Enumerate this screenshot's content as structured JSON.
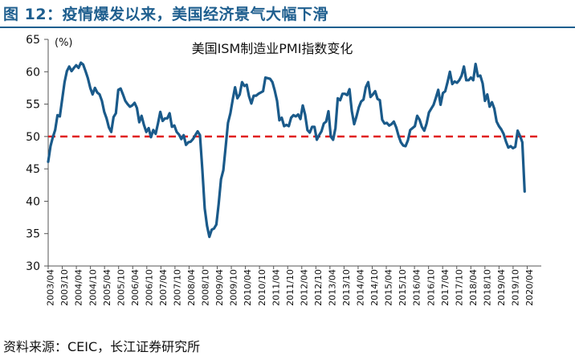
{
  "figure": {
    "title": "图 12：疫情爆发以来，美国经济景气大幅下滑",
    "source": "资料来源：CEIC，长江证券研究所"
  },
  "colors": {
    "line": "#1a5a8a",
    "threshold": "#e02020",
    "title": "#1f5f8f"
  },
  "chart_data": {
    "type": "line",
    "title": "美国ISM制造业PMI指数变化",
    "ylabel": "(%)",
    "ylim": [
      30,
      65
    ],
    "yticks": [
      30,
      35,
      40,
      45,
      50,
      55,
      60,
      65
    ],
    "x_tick_labels": [
      "2003/04",
      "2003/10",
      "2004/04",
      "2004/10",
      "2005/04",
      "2005/10",
      "2006/04",
      "2006/10",
      "2007/04",
      "2007/10",
      "2008/04",
      "2008/10",
      "2009/04",
      "2009/10",
      "2010/04",
      "2010/10",
      "2011/04",
      "2011/10",
      "2012/04",
      "2012/10",
      "2013/04",
      "2013/10",
      "2014/04",
      "2014/10",
      "2015/04",
      "2015/10",
      "2016/04",
      "2016/10",
      "2017/04",
      "2017/10",
      "2018/04",
      "2018/10",
      "2019/04",
      "2019/10",
      "2020/04"
    ],
    "reference_line": {
      "y": 50,
      "style": "dashed"
    },
    "grid": false,
    "series": [
      {
        "start": "2003/04",
        "frequency": "monthly",
        "values": [
          46.1,
          48.5,
          49.9,
          51.0,
          53.3,
          53.1,
          55.8,
          58.4,
          60.1,
          60.8,
          60.1,
          60.6,
          61.0,
          60.6,
          61.4,
          61.1,
          60.1,
          59.0,
          57.5,
          56.5,
          57.5,
          56.8,
          56.5,
          55.5,
          53.8,
          52.8,
          51.4,
          50.7,
          53.0,
          53.6,
          57.2,
          57.4,
          56.5,
          55.5,
          55.0,
          54.6,
          54.8,
          55.2,
          54.4,
          52.2,
          53.2,
          51.8,
          50.7,
          51.3,
          49.9,
          51.0,
          50.4,
          52.0,
          53.8,
          52.4,
          52.8,
          52.8,
          53.6,
          51.5,
          51.7,
          50.7,
          50.3,
          49.6,
          50.2,
          48.7,
          49.1,
          49.2,
          49.6,
          50.2,
          50.8,
          50.2,
          44.8,
          38.9,
          36.2,
          34.5,
          35.6,
          35.8,
          36.4,
          39.6,
          43.4,
          44.8,
          48.4,
          52.1,
          53.6,
          55.7,
          57.6,
          55.9,
          56.5,
          58.4,
          57.8,
          58.0,
          56.2,
          55.1,
          56.3,
          56.3,
          56.6,
          56.8,
          57.0,
          59.1,
          59.0,
          58.9,
          58.4,
          57.1,
          55.5,
          52.5,
          52.9,
          51.6,
          51.8,
          51.6,
          52.9,
          53.3,
          53.1,
          53.4,
          52.7,
          54.8,
          53.4,
          51.0,
          50.6,
          51.5,
          51.5,
          49.5,
          50.2,
          50.8,
          52.0,
          52.3,
          53.9,
          50.0,
          49.5,
          51.3,
          55.9,
          55.6,
          56.6,
          56.6,
          56.4,
          57.3,
          53.9,
          51.9,
          53.1,
          54.5,
          55.4,
          55.7,
          57.6,
          58.4,
          56.1,
          56.5,
          57.0,
          55.8,
          55.6,
          52.6,
          52.0,
          52.1,
          51.7,
          51.9,
          52.3,
          51.4,
          50.1,
          49.1,
          48.6,
          48.5,
          49.4,
          51.0,
          51.3,
          51.6,
          53.2,
          52.6,
          51.5,
          50.9,
          52.0,
          53.7,
          54.3,
          54.9,
          56.0,
          57.2,
          54.9,
          56.7,
          57.0,
          58.4,
          60.0,
          58.1,
          58.5,
          58.3,
          58.7,
          59.4,
          60.8,
          58.7,
          58.7,
          59.1,
          58.7,
          61.2,
          59.3,
          59.4,
          58.2,
          55.5,
          56.5,
          54.6,
          55.3,
          54.3,
          52.3,
          51.6,
          51.1,
          50.4,
          49.2,
          48.3,
          48.5,
          48.2,
          48.4,
          50.9,
          50.1,
          49.1,
          41.5
        ]
      }
    ]
  }
}
